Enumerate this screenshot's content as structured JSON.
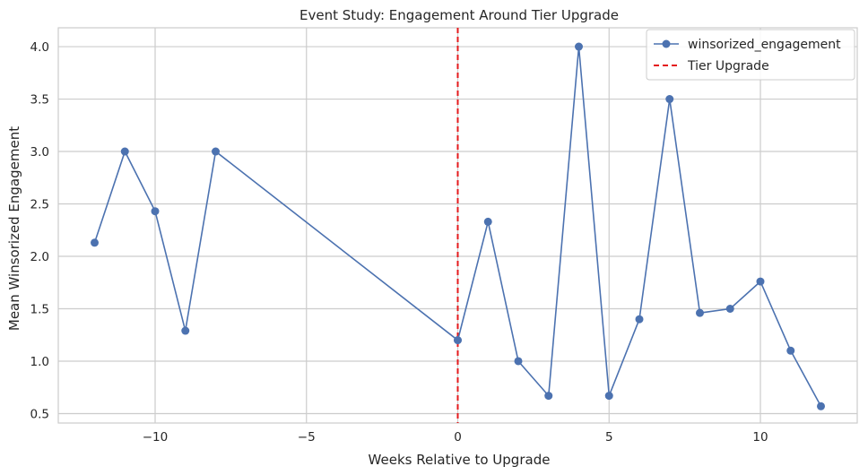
{
  "chart_data": {
    "type": "line",
    "title": "Event Study: Engagement Around Tier Upgrade",
    "xlabel": "Weeks Relative to Upgrade",
    "ylabel": "Mean Winsorized Engagement",
    "xlim": [
      -13.2,
      13.2
    ],
    "ylim": [
      0.41,
      4.18
    ],
    "x_ticks": [
      -10,
      -5,
      0,
      5,
      10
    ],
    "x_tick_labels": [
      "−10",
      "−5",
      "0",
      "5",
      "10"
    ],
    "y_ticks": [
      0.5,
      1.0,
      1.5,
      2.0,
      2.5,
      3.0,
      3.5,
      4.0
    ],
    "y_tick_labels": [
      "0.5",
      "1.0",
      "1.5",
      "2.0",
      "2.5",
      "3.0",
      "3.5",
      "4.0"
    ],
    "grid": true,
    "legend_position": "top-right",
    "series": [
      {
        "name": "winsorized_engagement",
        "color": "#4c72b0",
        "x": [
          -12,
          -11,
          -10,
          -9,
          -8,
          0,
          1,
          2,
          3,
          4,
          5,
          6,
          7,
          8,
          9,
          10,
          11,
          12
        ],
        "y": [
          2.13,
          3.0,
          2.43,
          1.29,
          3.0,
          1.2,
          2.33,
          1.0,
          0.67,
          4.0,
          0.67,
          1.4,
          3.5,
          1.46,
          1.5,
          1.76,
          1.1,
          0.57
        ]
      }
    ],
    "reference_line": {
      "name": "Tier Upgrade",
      "x": 0,
      "color": "#e41a1c",
      "style": "dashed"
    }
  }
}
